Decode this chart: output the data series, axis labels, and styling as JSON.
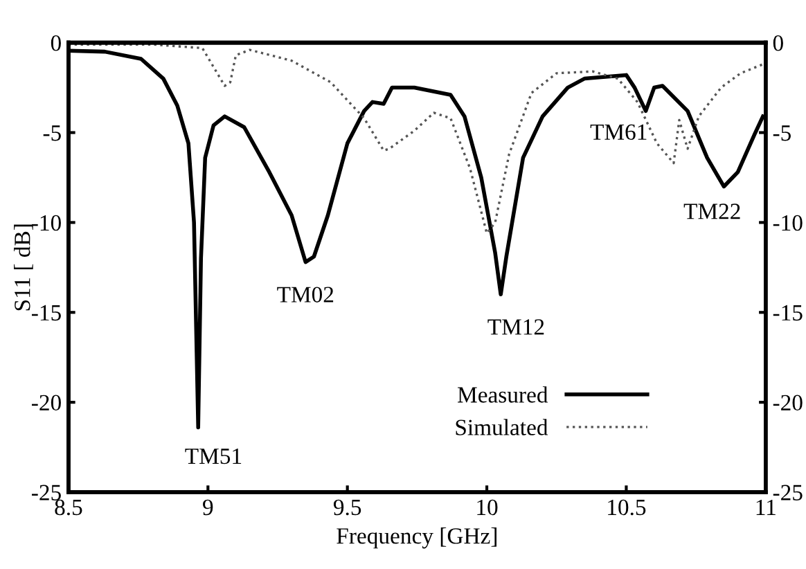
{
  "chart_data": {
    "type": "line",
    "xlabel": "Frequency [GHz]",
    "ylabel": "S11 [ dB]",
    "xlim": [
      8.5,
      11
    ],
    "xticks": [
      8.5,
      9,
      9.5,
      10,
      10.5,
      11
    ],
    "ylim": [
      -25,
      0
    ],
    "yticks": [
      -25,
      -20,
      -15,
      -10,
      -5,
      0
    ],
    "y2lim": [
      -25,
      0
    ],
    "y2ticks": [
      -25,
      -20,
      -15,
      -10,
      -5,
      0
    ],
    "grid": false,
    "legend": "bottom right",
    "marker": "none",
    "series": [
      {
        "name": "Measured",
        "color": "#000000",
        "line_style": "solid",
        "x": [
          8.5,
          8.63,
          8.76,
          8.84,
          8.89,
          8.93,
          8.95,
          8.965,
          8.975,
          8.99,
          9.02,
          9.06,
          9.13,
          9.22,
          9.3,
          9.35,
          9.38,
          9.43,
          9.5,
          9.56,
          9.59,
          9.63,
          9.66,
          9.74,
          9.87,
          9.92,
          9.98,
          10.03,
          10.05,
          10.07,
          10.13,
          10.2,
          10.29,
          10.35,
          10.5,
          10.53,
          10.57,
          10.6,
          10.63,
          10.72,
          10.79,
          10.85,
          10.9,
          10.96,
          10.99
        ],
        "values": [
          -0.45,
          -0.5,
          -0.9,
          -2.0,
          -3.5,
          -5.6,
          -10,
          -21.4,
          -12,
          -6.4,
          -4.6,
          -4.1,
          -4.7,
          -7.2,
          -9.6,
          -12.2,
          -11.9,
          -9.6,
          -5.6,
          -3.8,
          -3.3,
          -3.4,
          -2.5,
          -2.5,
          -2.9,
          -4.1,
          -7.5,
          -11.7,
          -14.0,
          -11.9,
          -6.4,
          -4.1,
          -2.5,
          -2.0,
          -1.8,
          -2.5,
          -3.8,
          -2.5,
          -2.4,
          -3.8,
          -6.4,
          -8.0,
          -7.2,
          -5.1,
          -4.1
        ]
      },
      {
        "name": "Simulated",
        "color": "#555555",
        "line_style": "dotted",
        "x": [
          8.5,
          8.8,
          8.98,
          9.06,
          9.08,
          9.1,
          9.15,
          9.3,
          9.44,
          9.56,
          9.63,
          9.65,
          9.74,
          9.81,
          9.87,
          9.94,
          10.0,
          10.03,
          10.08,
          10.16,
          10.25,
          10.38,
          10.47,
          10.54,
          10.61,
          10.67,
          10.69,
          10.72,
          10.76,
          10.84,
          10.91,
          10.99
        ],
        "values": [
          -0.1,
          -0.1,
          -0.3,
          -2.4,
          -2.2,
          -0.7,
          -0.4,
          -1.0,
          -2.2,
          -4.2,
          -6.0,
          -5.9,
          -4.9,
          -3.9,
          -4.2,
          -7.0,
          -10.6,
          -10.0,
          -6.2,
          -2.8,
          -1.7,
          -1.6,
          -2.0,
          -3.3,
          -5.6,
          -6.7,
          -4.3,
          -5.9,
          -4.1,
          -2.5,
          -1.7,
          -1.2
        ]
      }
    ],
    "annotations": [
      {
        "text": "TM51",
        "x": 8.965,
        "y": -21.4
      },
      {
        "text": "TM02",
        "x": 9.35,
        "y": -12.2
      },
      {
        "text": "TM12",
        "x": 10.05,
        "y": -14.0
      },
      {
        "text": "TM61",
        "x": 10.57,
        "y": -3.8
      },
      {
        "text": "TM22",
        "x": 10.85,
        "y": -8.0
      }
    ]
  }
}
